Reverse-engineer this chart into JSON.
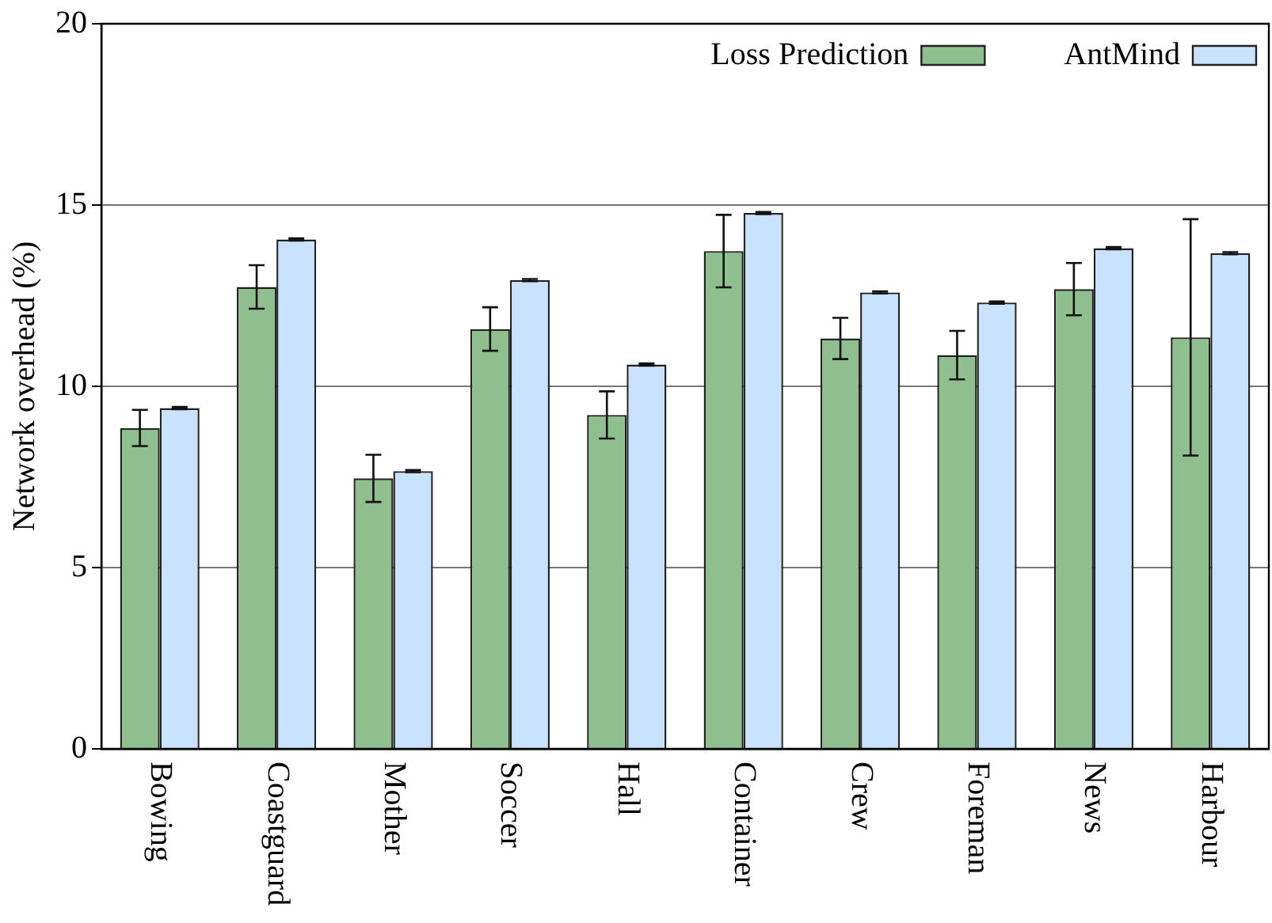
{
  "chart_data": {
    "type": "bar",
    "ylabel": "Network overhead (%)",
    "categories": [
      "Bowing",
      "Coastguard",
      "Mother",
      "Soccer",
      "Hall",
      "Container",
      "Crew",
      "Foreman",
      "News",
      "Harbour"
    ],
    "series": [
      {
        "name": "Loss Prediction",
        "color": "#90bf8f",
        "values": [
          8.85,
          12.74,
          7.46,
          11.58,
          9.21,
          13.73,
          11.32,
          10.86,
          12.68,
          11.35
        ],
        "errors": [
          0.5,
          0.6,
          0.65,
          0.6,
          0.65,
          1.0,
          0.57,
          0.67,
          0.72,
          3.26
        ]
      },
      {
        "name": "AntMind",
        "color": "#c8e2ff",
        "values": [
          9.4,
          14.05,
          7.66,
          12.93,
          10.6,
          14.78,
          12.59,
          12.31,
          13.81,
          13.67
        ],
        "errors": [
          0.03,
          0.03,
          0.03,
          0.03,
          0.03,
          0.03,
          0.03,
          0.03,
          0.03,
          0.03
        ]
      }
    ],
    "ylim": [
      0,
      20
    ],
    "yticks": [
      0,
      5,
      10,
      15,
      20
    ],
    "grid": "y",
    "legend": "top right"
  }
}
